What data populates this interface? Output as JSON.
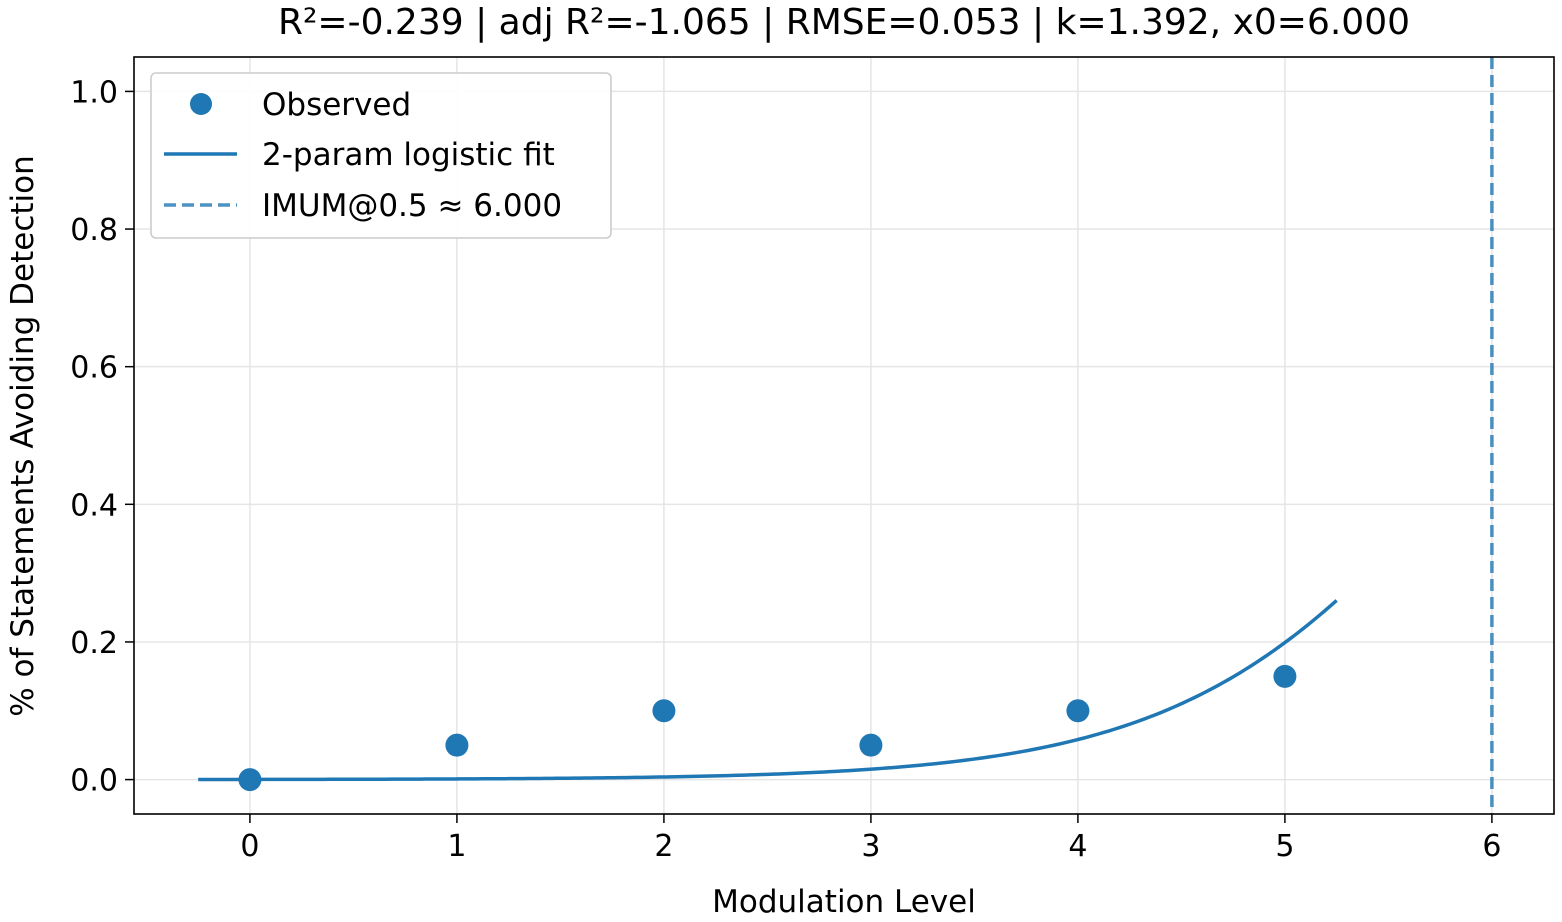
{
  "chart_data": {
    "type": "scatter",
    "title": "R²=-0.239 | adj R²=-1.065 | RMSE=0.053 | k=1.392, x0=6.000",
    "xlabel": "Modulation Level",
    "ylabel": "% of Statements Avoiding Detection",
    "xlim": [
      -0.56,
      6.3
    ],
    "ylim": [
      -0.05,
      1.05
    ],
    "xticks": [
      "0",
      "1",
      "2",
      "3",
      "4",
      "5",
      "6"
    ],
    "yticks": [
      "0.0",
      "0.2",
      "0.4",
      "0.6",
      "0.8",
      "1.0"
    ],
    "grid": true,
    "legend_position": "upper-left",
    "colors": {
      "series": "#1f77b4",
      "grid": "#e5e5e5"
    },
    "observed": {
      "name": "Observed",
      "x": [
        0,
        1,
        2,
        3,
        4,
        5
      ],
      "y": [
        0.0,
        0.05,
        0.1,
        0.05,
        0.1,
        0.15
      ]
    },
    "fit": {
      "name": "2-param logistic fit",
      "model": "logistic",
      "k": 1.392,
      "x0": 6.0,
      "x_range": [
        -0.25,
        5.25
      ]
    },
    "threshold": {
      "name": "IMUM@0.5 ≈ 6.000",
      "x": 6.0
    }
  }
}
